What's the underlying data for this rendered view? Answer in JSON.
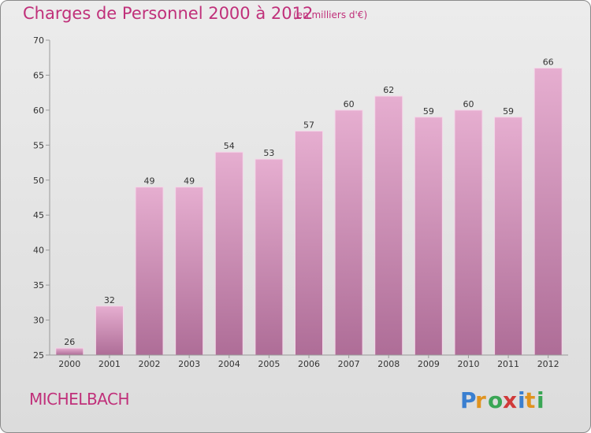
{
  "title": "Charges de Personnel 2000 à 2012",
  "subtitle": "(en milliers d'€)",
  "town": "MICHELBACH",
  "logo_text": "Proxiti",
  "colors": {
    "title": "#c0307a",
    "bar_top": "#e6aed0",
    "bar_bottom": "#ae6d97"
  },
  "chart_data": {
    "type": "bar",
    "title": "Charges de Personnel 2000 à 2012",
    "subtitle": "(en milliers d'€)",
    "categories": [
      "2000",
      "2001",
      "2002",
      "2003",
      "2004",
      "2005",
      "2006",
      "2007",
      "2008",
      "2009",
      "2010",
      "2011",
      "2012"
    ],
    "values": [
      26,
      32,
      49,
      49,
      54,
      53,
      57,
      60,
      62,
      59,
      60,
      59,
      66
    ],
    "ylim": [
      25,
      70
    ],
    "yticks": [
      25,
      30,
      35,
      40,
      45,
      50,
      55,
      60,
      65,
      70
    ],
    "grid": false,
    "data_labels": true
  }
}
